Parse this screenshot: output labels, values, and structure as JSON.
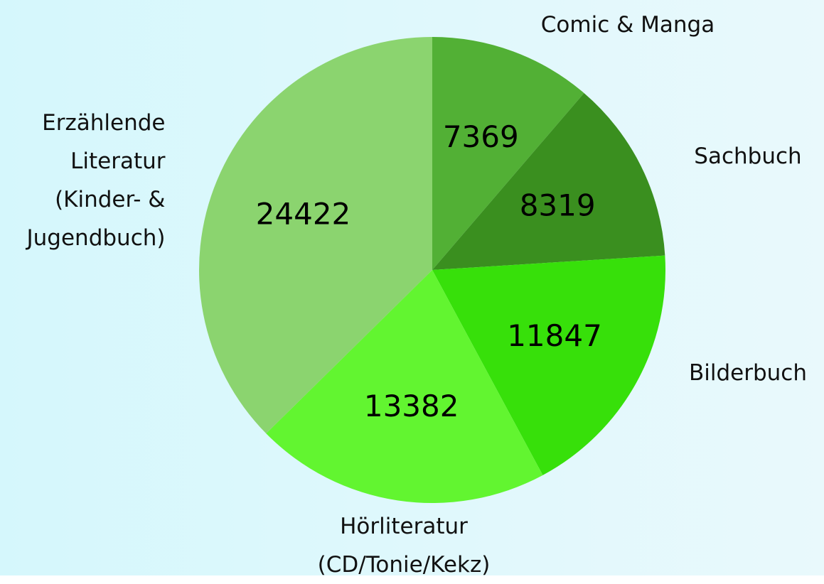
{
  "chart_data": {
    "type": "pie",
    "categories": [
      "Comic & Manga",
      "Sachbuch",
      "Bilderbuch",
      "Hörliteratur\n(CD/Tonie/Kekz)",
      "Erzählende\nLiteratur\n(Kinder- &\nJugendbuch)"
    ],
    "values": [
      7369,
      8319,
      11847,
      13382,
      24422
    ],
    "colors": [
      "#52b035",
      "#3a8f1f",
      "#37e00a",
      "#62f530",
      "#8bd46f"
    ]
  }
}
